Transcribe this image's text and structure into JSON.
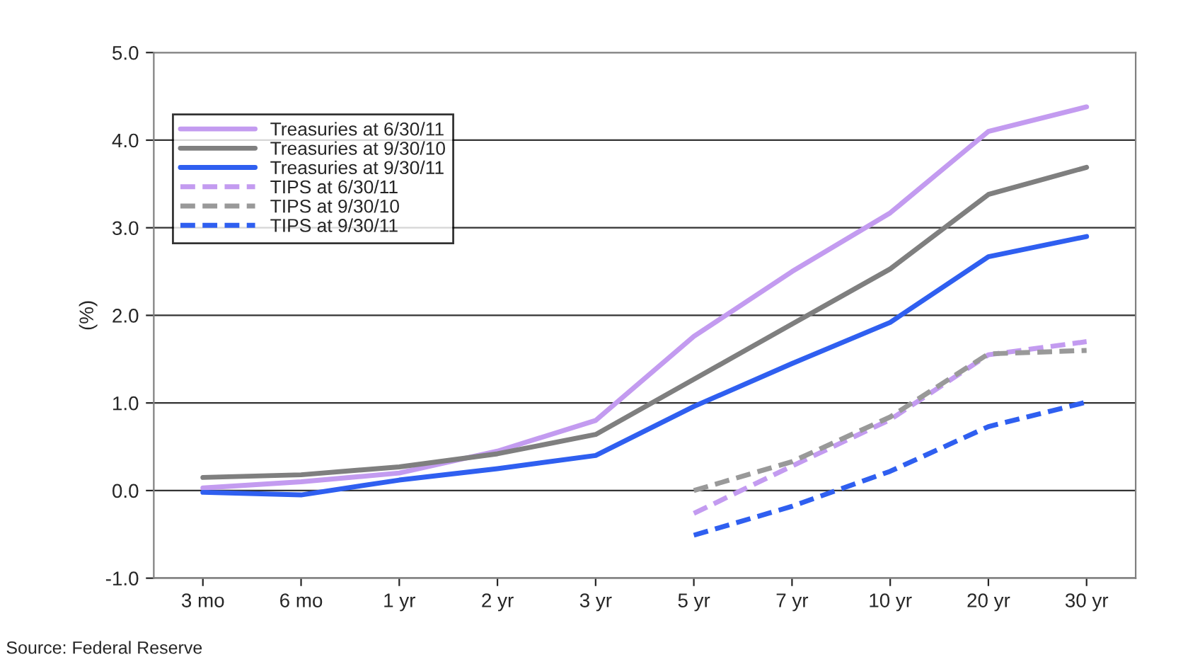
{
  "chart_data": {
    "type": "line",
    "ylabel": "(%)",
    "categories": [
      "3 mo",
      "6 mo",
      "1 yr",
      "2 yr",
      "3 yr",
      "5 yr",
      "7 yr",
      "10 yr",
      "20 yr",
      "30 yr"
    ],
    "series": [
      {
        "name": "Treasuries at 6/30/11",
        "color": "#c39bf0",
        "line_style": "solid",
        "values": [
          0.03,
          0.1,
          0.2,
          0.45,
          0.8,
          1.76,
          2.5,
          3.17,
          4.1,
          4.38
        ]
      },
      {
        "name": "Treasuries at 9/30/10",
        "color": "#7f7f7f",
        "line_style": "solid",
        "values": [
          0.15,
          0.18,
          0.27,
          0.42,
          0.64,
          1.27,
          1.9,
          2.53,
          3.38,
          3.69
        ]
      },
      {
        "name": "Treasuries at 9/30/11",
        "color": "#2f5ff0",
        "line_style": "solid",
        "values": [
          -0.02,
          -0.05,
          0.12,
          0.25,
          0.4,
          0.96,
          1.45,
          1.92,
          2.67,
          2.9
        ]
      },
      {
        "name": "TIPS at 6/30/11",
        "color": "#c39bf0",
        "line_style": "dashed",
        "values": [
          null,
          null,
          null,
          null,
          null,
          -0.26,
          0.28,
          0.81,
          1.55,
          1.7
        ]
      },
      {
        "name": "TIPS at 9/30/10",
        "color": "#999999",
        "line_style": "dashed",
        "values": [
          null,
          null,
          null,
          null,
          null,
          0.0,
          0.33,
          0.84,
          1.56,
          1.6
        ]
      },
      {
        "name": "TIPS at 9/30/11",
        "color": "#2f5ff0",
        "line_style": "dashed",
        "values": [
          null,
          null,
          null,
          null,
          null,
          -0.51,
          -0.18,
          0.22,
          0.73,
          1.01
        ]
      }
    ],
    "ylim": [
      -1.0,
      5.0
    ],
    "yticks": [
      {
        "value": -1.0,
        "label": "-1.0"
      },
      {
        "value": 0.0,
        "label": "0.0"
      },
      {
        "value": 1.0,
        "label": "1.0"
      },
      {
        "value": 2.0,
        "label": "2.0"
      },
      {
        "value": 3.0,
        "label": "3.0"
      },
      {
        "value": 4.0,
        "label": "4.0"
      },
      {
        "value": 5.0,
        "label": "5.0"
      }
    ],
    "grid": "y",
    "legend": "top left",
    "annotations": [
      "Source: Federal Reserve"
    ]
  }
}
